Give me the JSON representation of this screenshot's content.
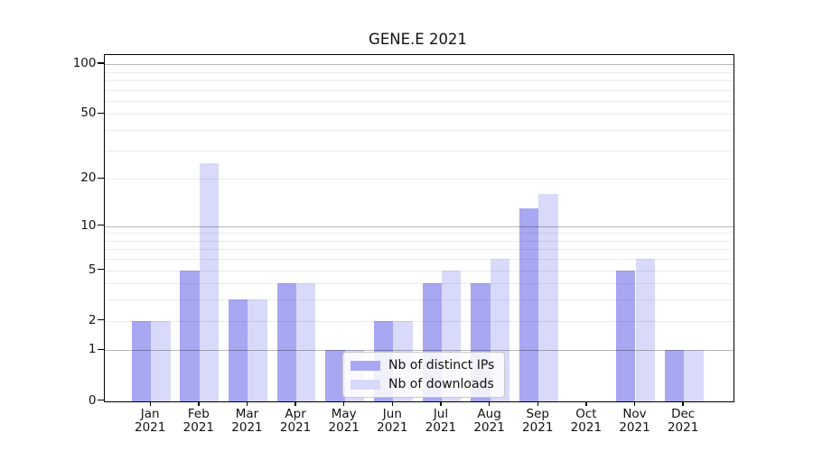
{
  "chart_data": {
    "type": "bar",
    "title": "GENE.E 2021",
    "categories": [
      "Jan 2021",
      "Feb 2021",
      "Mar 2021",
      "Apr 2021",
      "May 2021",
      "Jun 2021",
      "Jul 2021",
      "Aug 2021",
      "Sep 2021",
      "Oct 2021",
      "Nov 2021",
      "Dec 2021"
    ],
    "series": [
      {
        "name": "Nb of distinct IPs",
        "color": "#a7a7f2",
        "values": [
          2,
          5,
          3,
          4,
          1,
          2,
          4,
          4,
          13,
          0,
          5,
          1
        ]
      },
      {
        "name": "Nb of downloads",
        "color": "#d9d9fa",
        "values": [
          2,
          25,
          3,
          4,
          1,
          2,
          5,
          6,
          16,
          0,
          6,
          1
        ]
      }
    ],
    "yscale": "log1p",
    "ylim": [
      0,
      113.5
    ],
    "yticks_labeled": [
      0,
      1,
      2,
      5,
      10,
      20,
      50,
      100
    ],
    "yticks_major": [
      1,
      10,
      100
    ],
    "yticks_minor": [
      2,
      3,
      4,
      5,
      6,
      7,
      8,
      9,
      20,
      30,
      40,
      50,
      60,
      70,
      80,
      90
    ],
    "xlabel": "",
    "ylabel": "",
    "grid": true,
    "grid_above_bars": true,
    "legend_position": "lower-center-left"
  }
}
